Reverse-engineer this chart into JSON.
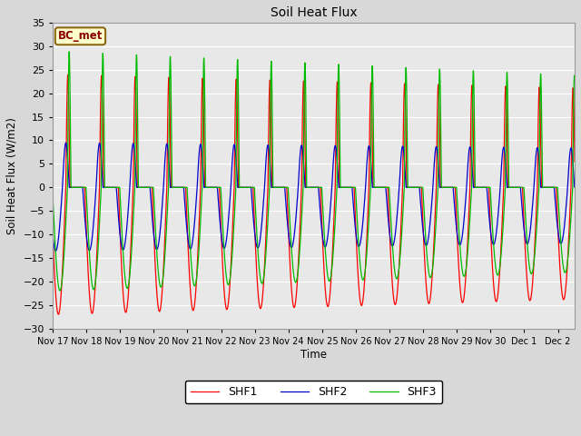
{
  "title": "Soil Heat Flux",
  "ylabel": "Soil Heat Flux (W/m2)",
  "xlabel": "Time",
  "annotation": "BC_met",
  "ylim": [
    -30,
    35
  ],
  "line_colors": {
    "SHF1": "#ff0000",
    "SHF2": "#0000cc",
    "SHF3": "#00bb00"
  },
  "background_color": "#d8d8d8",
  "axes_bg": "#e8e8e8",
  "grid_color": "#ffffff",
  "tick_labels": [
    "Nov 17",
    "Nov 18",
    "Nov 19",
    "Nov 20",
    "Nov 21",
    "Nov 22",
    "Nov 23",
    "Nov 24",
    "Nov 25",
    "Nov 26",
    "Nov 27",
    "Nov 28",
    "Nov 29",
    "Nov 30",
    "Dec 1",
    "Dec 2"
  ],
  "y_ticks": [
    -30,
    -25,
    -20,
    -15,
    -10,
    -5,
    0,
    5,
    10,
    15,
    20,
    25,
    30,
    35
  ],
  "n_days": 15.5
}
